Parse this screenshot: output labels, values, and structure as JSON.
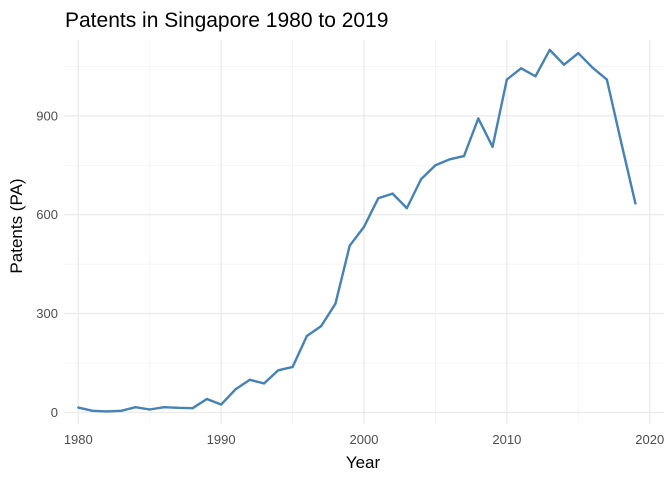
{
  "chart_data": {
    "type": "line",
    "title": "Patents in Singapore 1980 to 2019",
    "xlabel": "Year",
    "ylabel": "Patents (PA)",
    "xlim": [
      1979,
      2021
    ],
    "ylim": [
      -35,
      1130
    ],
    "x_ticks": [
      1980,
      1990,
      2000,
      2010,
      2020
    ],
    "x_minor_ticks": [
      1985,
      1995,
      2005,
      2015
    ],
    "y_ticks": [
      0,
      300,
      600,
      900
    ],
    "y_minor_ticks": [
      150,
      450,
      750,
      1050
    ],
    "grid": true,
    "line_color": "#4682b4",
    "series": [
      {
        "x": [
          1980,
          1981,
          1982,
          1983,
          1984,
          1985,
          1986,
          1987,
          1988,
          1989,
          1990,
          1991,
          1992,
          1993,
          1994,
          1995,
          1996,
          1997,
          1998,
          1999,
          2000,
          2001,
          2002,
          2003,
          2004,
          2005,
          2006,
          2007,
          2008,
          2009,
          2010,
          2011,
          2012,
          2013,
          2014,
          2015,
          2016,
          2017,
          2018,
          2019
        ],
        "y": [
          15,
          5,
          3,
          5,
          16,
          9,
          16,
          14,
          13,
          41,
          24,
          70,
          99,
          88,
          128,
          138,
          232,
          262,
          330,
          506,
          563,
          650,
          664,
          620,
          708,
          750,
          768,
          778,
          892,
          806,
          1010,
          1044,
          1020,
          1100,
          1055,
          1090,
          1046,
          1010,
          820,
          634
        ]
      }
    ]
  }
}
